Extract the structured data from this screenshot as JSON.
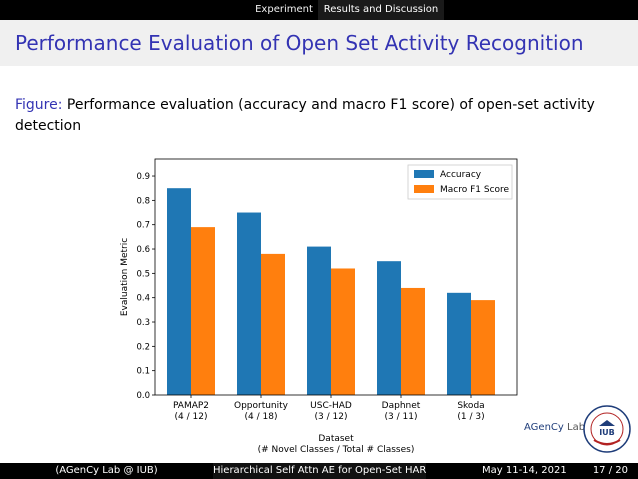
{
  "nav": {
    "section1": "Experiment",
    "section2": "Results and Discussion"
  },
  "slide": {
    "title": "Performance Evaluation of Open Set Activity Recognition",
    "caption_label": "Figure:",
    "caption_text": " Performance evaluation (accuracy and macro F1 score) of open-set activity detection"
  },
  "chart_data": {
    "type": "bar",
    "categories": [
      "PAMAP2",
      "Opportunity",
      "USC-HAD",
      "Daphnet",
      "Skoda"
    ],
    "category_sublabels": [
      "(4 / 12)",
      "(4 / 18)",
      "(3 / 12)",
      "(3 / 11)",
      "(1 / 3)"
    ],
    "series": [
      {
        "name": "Accuracy",
        "color": "#1f77b4",
        "values": [
          0.85,
          0.75,
          0.61,
          0.55,
          0.42
        ]
      },
      {
        "name": "Macro F1 Score",
        "color": "#ff7f0e",
        "values": [
          0.69,
          0.58,
          0.52,
          0.44,
          0.39
        ]
      }
    ],
    "xlabel": "Dataset",
    "xlabel_sub": "(# Novel Classes / Total # Classes)",
    "ylabel": "Evaluation Metric",
    "ylim": [
      0,
      0.97
    ],
    "yticks": [
      0.0,
      0.1,
      0.2,
      0.3,
      0.4,
      0.5,
      0.6,
      0.7,
      0.8,
      0.9
    ],
    "ytick_labels": [
      "0.0",
      "0.1",
      "0.2",
      "0.3",
      "0.4",
      "0.5",
      "0.6",
      "0.7",
      "0.8",
      "0.9"
    ],
    "legend_position": "top-right",
    "grid": false
  },
  "logo": {
    "name_prefix": "AGenCy",
    "name_suffix": " Lab",
    "seal_text": "IUB"
  },
  "footer": {
    "author": "(AGenCy Lab @ IUB)",
    "talk_title": "Hierarchical Self Attn AE for Open-Set HAR",
    "date": "May 11-14, 2021",
    "page": "17 / 20"
  }
}
